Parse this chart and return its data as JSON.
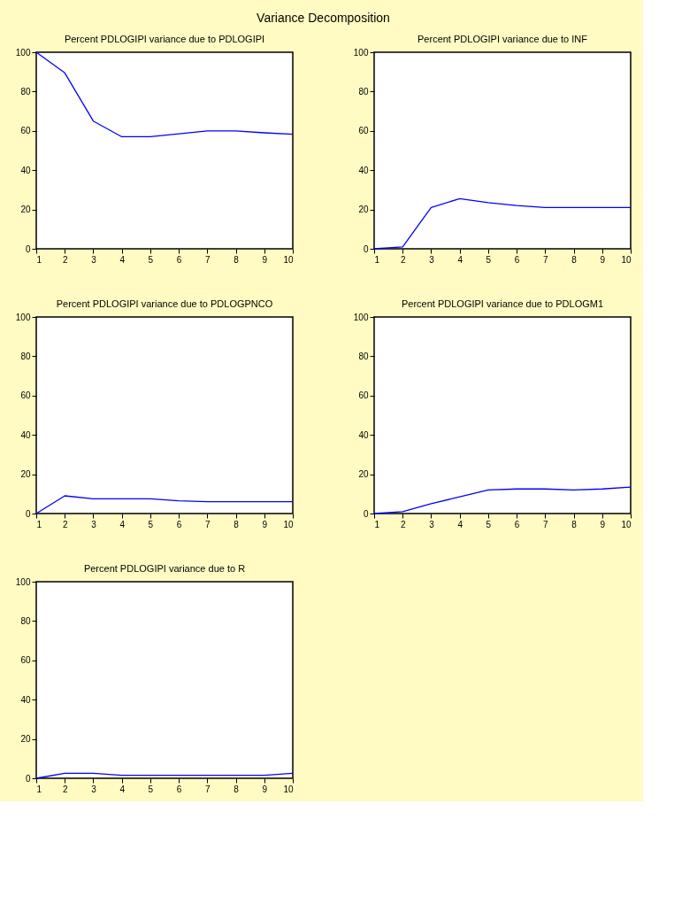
{
  "chart_data": [
    {
      "type": "other",
      "title": "Variance Decomposition"
    },
    {
      "type": "line",
      "title": "Percent PDLOGIPI variance due to PDLOGIPI",
      "x": [
        1,
        2,
        3,
        4,
        5,
        6,
        7,
        8,
        9,
        10
      ],
      "series": [
        {
          "color": "#0000ff",
          "values": [
            100,
            89.5,
            65,
            57,
            57,
            58.5,
            60,
            60,
            59,
            58.3
          ]
        }
      ],
      "xlim": [
        1,
        10
      ],
      "xticks": [
        1,
        2,
        3,
        4,
        5,
        6,
        7,
        8,
        9,
        10
      ],
      "ylim": [
        0,
        100
      ],
      "yticks": [
        0,
        20,
        40,
        60,
        80,
        100
      ],
      "grid": false
    },
    {
      "type": "line",
      "title": "Percent PDLOGIPI variance due to INF",
      "x": [
        1,
        2,
        3,
        4,
        5,
        6,
        7,
        8,
        9,
        10
      ],
      "series": [
        {
          "color": "#0000ff",
          "values": [
            0,
            1,
            21,
            25.5,
            23.5,
            22,
            21,
            21,
            21,
            21
          ]
        }
      ],
      "xlim": [
        1,
        10
      ],
      "xticks": [
        1,
        2,
        3,
        4,
        5,
        6,
        7,
        8,
        9,
        10
      ],
      "ylim": [
        0,
        100
      ],
      "yticks": [
        0,
        20,
        40,
        60,
        80,
        100
      ],
      "grid": false
    },
    {
      "type": "line",
      "title": "Percent PDLOGIPI variance due to PDLOGPNCO",
      "x": [
        1,
        2,
        3,
        4,
        5,
        6,
        7,
        8,
        9,
        10
      ],
      "series": [
        {
          "color": "#0000ff",
          "values": [
            0,
            9,
            7.5,
            7.5,
            7.5,
            6.5,
            6,
            6,
            6,
            6
          ]
        }
      ],
      "xlim": [
        1,
        10
      ],
      "xticks": [
        1,
        2,
        3,
        4,
        5,
        6,
        7,
        8,
        9,
        10
      ],
      "ylim": [
        0,
        100
      ],
      "yticks": [
        0,
        20,
        40,
        60,
        80,
        100
      ],
      "grid": false
    },
    {
      "type": "line",
      "title": "Percent PDLOGIPI variance due to PDLOGM1",
      "x": [
        1,
        2,
        3,
        4,
        5,
        6,
        7,
        8,
        9,
        10
      ],
      "series": [
        {
          "color": "#0000ff",
          "values": [
            0,
            1,
            5,
            8.5,
            12,
            12.5,
            12.5,
            12,
            12.5,
            13.5
          ]
        }
      ],
      "xlim": [
        1,
        10
      ],
      "xticks": [
        1,
        2,
        3,
        4,
        5,
        6,
        7,
        8,
        9,
        10
      ],
      "ylim": [
        0,
        100
      ],
      "yticks": [
        0,
        20,
        40,
        60,
        80,
        100
      ],
      "grid": false
    },
    {
      "type": "line",
      "title": "Percent PDLOGIPI variance due to R",
      "x": [
        1,
        2,
        3,
        4,
        5,
        6,
        7,
        8,
        9,
        10
      ],
      "series": [
        {
          "color": "#0000ff",
          "values": [
            0,
            2.5,
            2.5,
            1.5,
            1.5,
            1.5,
            1.5,
            1.5,
            1.5,
            2.5
          ]
        }
      ],
      "xlim": [
        1,
        10
      ],
      "xticks": [
        1,
        2,
        3,
        4,
        5,
        6,
        7,
        8,
        9,
        10
      ],
      "ylim": [
        0,
        100
      ],
      "yticks": [
        0,
        20,
        40,
        60,
        80,
        100
      ],
      "grid": false
    }
  ]
}
